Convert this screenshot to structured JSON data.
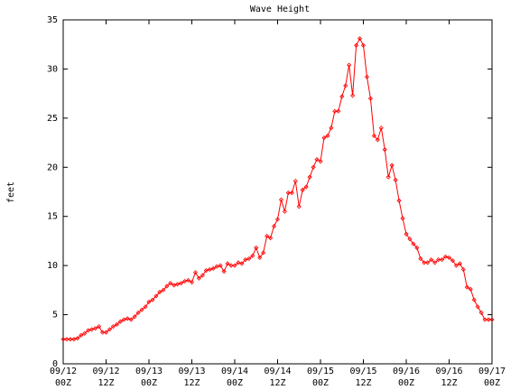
{
  "chart_data": {
    "type": "line",
    "title": "Wave Height",
    "y_label": "feet",
    "x": [
      0,
      1,
      2,
      3,
      4,
      5,
      6,
      7,
      8,
      9,
      10,
      11,
      12,
      13,
      14,
      15,
      16,
      17,
      18,
      19,
      20,
      21,
      22,
      23,
      24,
      25,
      26,
      27,
      28,
      29,
      30,
      31,
      32,
      33,
      34,
      35,
      36,
      37,
      38,
      39,
      40,
      41,
      42,
      43,
      44,
      45,
      46,
      47,
      48,
      49,
      50,
      51,
      52,
      53,
      54,
      55,
      56,
      57,
      58,
      59,
      60,
      61,
      62,
      63,
      64,
      65,
      66,
      67,
      68,
      69,
      70,
      71,
      72,
      73,
      74,
      75,
      76,
      77,
      78,
      79,
      80,
      81,
      82,
      83,
      84,
      85,
      86,
      87,
      88,
      89,
      90,
      91,
      92,
      93,
      94,
      95,
      96,
      97,
      98,
      99,
      100,
      101,
      102,
      103,
      104,
      105,
      106,
      107,
      108,
      109,
      110,
      111,
      112,
      113,
      114,
      115,
      116,
      117,
      118,
      119,
      120
    ],
    "series": [
      {
        "color": "#ff0000",
        "values": [
          2.5,
          2.5,
          2.5,
          2.5,
          2.6,
          2.9,
          3.1,
          3.4,
          3.5,
          3.6,
          3.8,
          3.2,
          3.2,
          3.5,
          3.8,
          4.0,
          4.3,
          4.5,
          4.6,
          4.5,
          4.8,
          5.2,
          5.5,
          5.8,
          6.3,
          6.5,
          6.9,
          7.3,
          7.5,
          7.9,
          8.2,
          8.0,
          8.1,
          8.2,
          8.4,
          8.5,
          8.3,
          9.3,
          8.7,
          9.0,
          9.5,
          9.6,
          9.7,
          9.9,
          10.0,
          9.4,
          10.2,
          10.0,
          10.0,
          10.3,
          10.2,
          10.6,
          10.7,
          11.0,
          11.8,
          10.8,
          11.3,
          13.0,
          12.8,
          14.0,
          14.7,
          16.7,
          15.5,
          17.4,
          17.4,
          18.6,
          16.0,
          17.7,
          18.0,
          19.0,
          20.0,
          20.8,
          20.6,
          23.0,
          23.2,
          24.0,
          25.7,
          25.7,
          27.2,
          28.3,
          30.4,
          27.3,
          32.4,
          33.1,
          32.4,
          29.2,
          27.0,
          23.2,
          22.8,
          24.0,
          21.8,
          19.0,
          20.2,
          18.7,
          16.6,
          14.8,
          13.2,
          12.7,
          12.2,
          11.8,
          10.7,
          10.3,
          10.3,
          10.6,
          10.3,
          10.6,
          10.6,
          10.9,
          10.8,
          10.5,
          10.0,
          10.2,
          9.6,
          7.8,
          7.6,
          6.5,
          5.8,
          5.2,
          4.5,
          4.5,
          4.5
        ]
      }
    ],
    "xlim": [
      0,
      120
    ],
    "xticks": [
      {
        "value": 0,
        "label": "09/12\n00Z"
      },
      {
        "value": 12,
        "label": "09/12\n12Z"
      },
      {
        "value": 24,
        "label": "09/13\n00Z"
      },
      {
        "value": 36,
        "label": "09/13\n12Z"
      },
      {
        "value": 48,
        "label": "09/14\n00Z"
      },
      {
        "value": 60,
        "label": "09/14\n12Z"
      },
      {
        "value": 72,
        "label": "09/15\n00Z"
      },
      {
        "value": 84,
        "label": "09/15\n12Z"
      },
      {
        "value": 96,
        "label": "09/16\n00Z"
      },
      {
        "value": 108,
        "label": "09/16\n12Z"
      },
      {
        "value": 120,
        "label": "09/17\n00Z"
      }
    ],
    "ylim": [
      0,
      35
    ],
    "yticks": [
      0,
      5,
      10,
      15,
      20,
      25,
      30,
      35
    ]
  }
}
